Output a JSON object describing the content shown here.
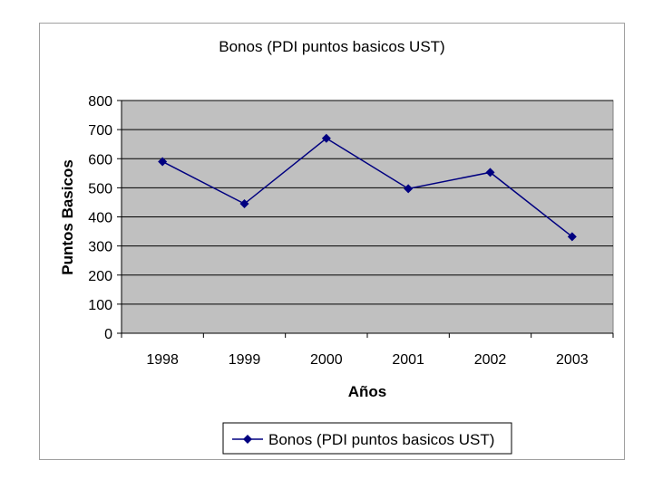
{
  "chart_data": {
    "type": "line",
    "title": "Bonos (PDI puntos basicos UST)",
    "xlabel": "Años",
    "ylabel": "Puntos Basicos",
    "categories": [
      "1998",
      "1999",
      "2000",
      "2001",
      "2002",
      "2003"
    ],
    "series": [
      {
        "name": "Bonos (PDI puntos basicos UST)",
        "values": [
          590,
          445,
          670,
          497,
          553,
          332
        ],
        "color": "#000080",
        "marker": "diamond"
      }
    ],
    "ylim": [
      0,
      800
    ],
    "yticks": [
      0,
      100,
      200,
      300,
      400,
      500,
      600,
      700,
      800
    ],
    "grid": true,
    "plot_background": "#c0c0c0",
    "legend_position": "bottom-center"
  }
}
